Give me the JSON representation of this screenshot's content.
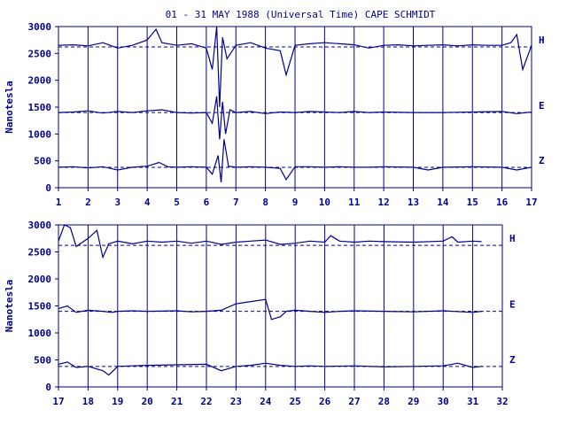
{
  "colors": {
    "ink": "#00008b",
    "background": "#ffffff"
  },
  "chart_data": {
    "type": "line",
    "title": "01 - 31 MAY 1988 (Universal Time) CAPE SCHMIDT",
    "ylabel": "Nanotesla",
    "y_ticks": [
      "0",
      "500",
      "1000",
      "1500",
      "2000",
      "2500",
      "3000"
    ],
    "ylim": [
      0,
      3000
    ],
    "components": [
      "H",
      "E",
      "Z"
    ],
    "dashed_baselines": [
      2620,
      1400,
      380
    ],
    "panels": [
      {
        "xlim": [
          1,
          17
        ],
        "x_ticks": [
          "1",
          "2",
          "3",
          "4",
          "5",
          "6",
          "7",
          "8",
          "9",
          "10",
          "11",
          "12",
          "13",
          "14",
          "15",
          "16",
          "17"
        ],
        "series": [
          {
            "name": "H",
            "x": [
              1.0,
              1.5,
              2.0,
              2.5,
              3.0,
              3.5,
              4.0,
              4.3,
              4.5,
              5.0,
              5.5,
              6.0,
              6.2,
              6.35,
              6.45,
              6.55,
              6.7,
              7.0,
              7.5,
              8.0,
              8.5,
              8.7,
              9.0,
              9.5,
              10.0,
              10.5,
              11.0,
              11.5,
              12.0,
              12.5,
              13.0,
              13.5,
              14.0,
              14.5,
              15.0,
              15.5,
              16.0,
              16.3,
              16.5,
              16.7,
              17.0
            ],
            "y": [
              2650,
              2660,
              2640,
              2700,
              2600,
              2650,
              2750,
              2950,
              2700,
              2650,
              2680,
              2600,
              2200,
              3000,
              1500,
              2800,
              2400,
              2650,
              2700,
              2600,
              2550,
              2100,
              2650,
              2680,
              2700,
              2680,
              2660,
              2600,
              2650,
              2660,
              2640,
              2650,
              2660,
              2640,
              2660,
              2650,
              2650,
              2700,
              2850,
              2200,
              2650
            ]
          },
          {
            "name": "E",
            "x": [
              1.0,
              1.5,
              2.0,
              2.5,
              3.0,
              3.5,
              4.0,
              4.5,
              5.0,
              5.5,
              6.0,
              6.2,
              6.35,
              6.45,
              6.55,
              6.65,
              6.8,
              7.0,
              7.5,
              8.0,
              8.5,
              9.0,
              9.5,
              10.0,
              10.5,
              11.0,
              11.5,
              12.0,
              13.0,
              14.0,
              15.0,
              16.0,
              16.5,
              17.0
            ],
            "y": [
              1400,
              1410,
              1430,
              1390,
              1420,
              1400,
              1430,
              1450,
              1400,
              1390,
              1400,
              1200,
              1700,
              900,
              1600,
              1000,
              1450,
              1400,
              1420,
              1380,
              1410,
              1400,
              1420,
              1410,
              1400,
              1420,
              1400,
              1410,
              1400,
              1400,
              1410,
              1420,
              1380,
              1410
            ]
          },
          {
            "name": "Z",
            "x": [
              1.0,
              1.5,
              2.0,
              2.5,
              3.0,
              3.5,
              4.0,
              4.4,
              4.7,
              5.0,
              5.5,
              6.0,
              6.2,
              6.4,
              6.5,
              6.6,
              6.75,
              7.0,
              7.5,
              8.0,
              8.5,
              8.7,
              9.0,
              9.5,
              10.0,
              10.5,
              11.0,
              11.5,
              12.0,
              13.0,
              13.5,
              14.0,
              15.0,
              16.0,
              16.5,
              17.0
            ],
            "y": [
              380,
              390,
              370,
              390,
              330,
              380,
              400,
              470,
              390,
              380,
              390,
              380,
              250,
              600,
              100,
              900,
              400,
              380,
              390,
              380,
              360,
              150,
              390,
              390,
              380,
              390,
              380,
              380,
              390,
              380,
              330,
              380,
              390,
              380,
              330,
              380
            ]
          }
        ]
      },
      {
        "xlim": [
          17,
          32
        ],
        "x_ticks": [
          "17",
          "18",
          "19",
          "20",
          "21",
          "22",
          "23",
          "24",
          "25",
          "26",
          "27",
          "28",
          "29",
          "30",
          "31",
          "32"
        ],
        "series": [
          {
            "name": "H",
            "x": [
              17.0,
              17.2,
              17.4,
              17.6,
              18.0,
              18.3,
              18.5,
              18.7,
              19.0,
              19.5,
              20.0,
              20.5,
              21.0,
              21.5,
              22.0,
              22.5,
              23.0,
              23.5,
              24.0,
              24.5,
              25.0,
              25.5,
              26.0,
              26.2,
              26.5,
              27.0,
              27.5,
              28.0,
              29.0,
              30.0,
              30.3,
              30.5,
              31.0,
              31.3
            ],
            "y": [
              2700,
              3000,
              2950,
              2600,
              2750,
              2900,
              2400,
              2650,
              2700,
              2650,
              2700,
              2680,
              2700,
              2660,
              2700,
              2640,
              2680,
              2700,
              2720,
              2640,
              2660,
              2700,
              2680,
              2800,
              2700,
              2680,
              2700,
              2690,
              2680,
              2700,
              2780,
              2680,
              2700,
              2690
            ]
          },
          {
            "name": "E",
            "x": [
              17.0,
              17.3,
              17.6,
              18.0,
              18.5,
              18.8,
              19.0,
              19.5,
              20.0,
              21.0,
              21.5,
              22.0,
              22.5,
              23.0,
              23.5,
              24.0,
              24.2,
              24.5,
              24.7,
              25.0,
              25.5,
              26.0,
              26.5,
              27.0,
              28.0,
              29.0,
              30.0,
              31.0,
              31.3
            ],
            "y": [
              1450,
              1500,
              1380,
              1420,
              1400,
              1380,
              1400,
              1410,
              1400,
              1410,
              1390,
              1400,
              1420,
              1540,
              1580,
              1620,
              1250,
              1300,
              1400,
              1420,
              1400,
              1380,
              1400,
              1410,
              1400,
              1390,
              1410,
              1380,
              1400
            ]
          },
          {
            "name": "Z",
            "x": [
              17.0,
              17.3,
              17.6,
              18.0,
              18.5,
              18.7,
              19.0,
              19.5,
              20.0,
              21.0,
              22.0,
              22.5,
              23.0,
              23.5,
              24.0,
              24.5,
              25.0,
              25.5,
              26.0,
              27.0,
              28.0,
              29.0,
              30.0,
              30.5,
              31.0,
              31.3
            ],
            "y": [
              420,
              460,
              360,
              380,
              300,
              220,
              380,
              390,
              400,
              410,
              420,
              300,
              380,
              400,
              440,
              400,
              380,
              390,
              380,
              390,
              370,
              380,
              390,
              440,
              360,
              380
            ]
          }
        ]
      }
    ]
  }
}
